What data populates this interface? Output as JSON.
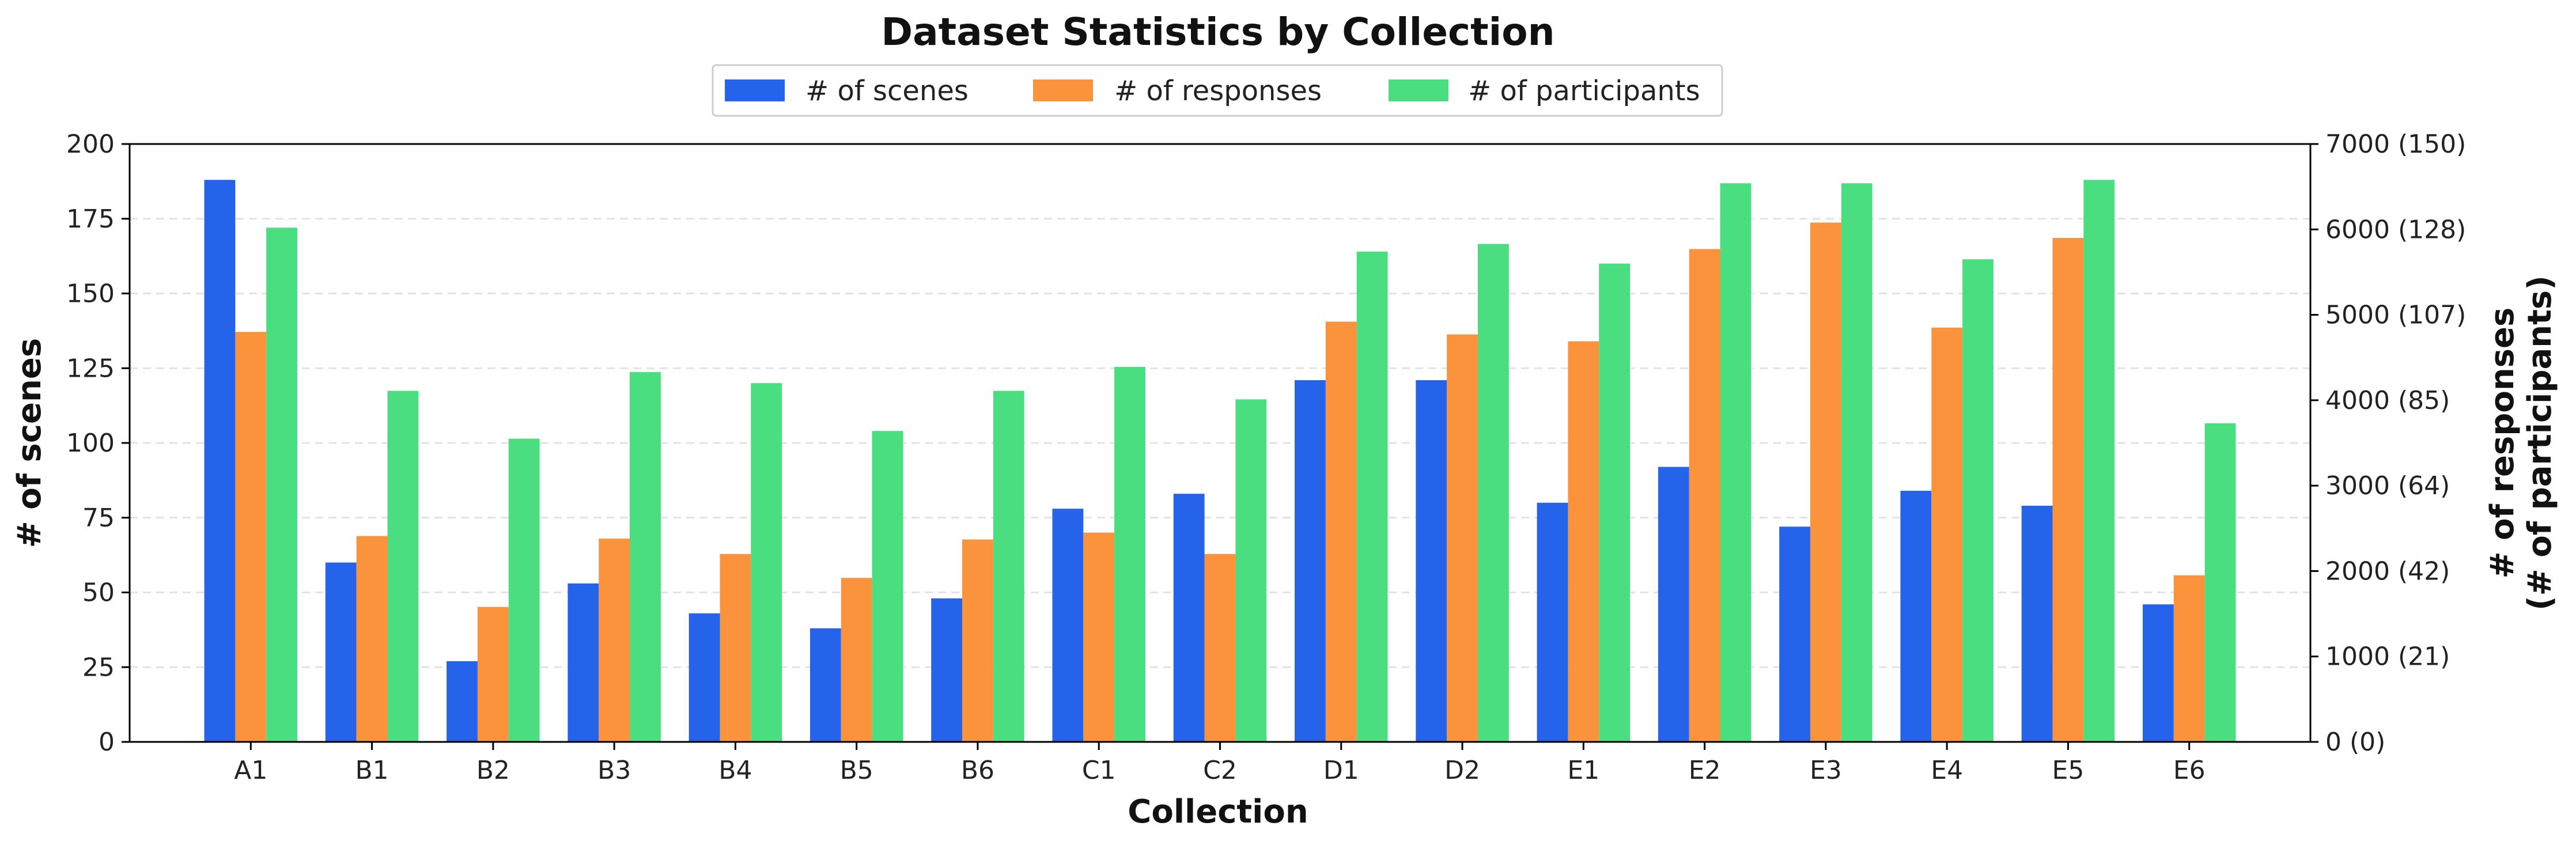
{
  "chart_data": {
    "type": "bar",
    "title": "Dataset Statistics by Collection",
    "xlabel": "Collection",
    "ylabel": "# of scenes",
    "y2label_line1": "# of responses",
    "y2label_line2": "(# of participants)",
    "categories": [
      "A1",
      "B1",
      "B2",
      "B3",
      "B4",
      "B5",
      "B6",
      "C1",
      "C2",
      "D1",
      "D2",
      "E1",
      "E2",
      "E3",
      "E4",
      "E5",
      "E6"
    ],
    "ylim": [
      0,
      200
    ],
    "yticks": [
      0,
      25,
      50,
      75,
      100,
      125,
      150,
      175,
      200
    ],
    "y2lim": [
      0,
      7000
    ],
    "y2ticks": [
      0,
      1000,
      2000,
      3000,
      4000,
      5000,
      6000,
      7000
    ],
    "y2tick_labels": [
      "0 (0)",
      "1000 (21)",
      "2000 (42)",
      "3000 (64)",
      "4000 (85)",
      "5000 (107)",
      "6000 (128)",
      "7000 (150)"
    ],
    "grid": true,
    "legend_position": "top-center",
    "series": [
      {
        "name": "# of scenes",
        "axis": "left",
        "color": "#2563eb",
        "values": [
          188,
          60,
          27,
          53,
          43,
          38,
          48,
          78,
          83,
          121,
          121,
          80,
          92,
          72,
          84,
          79,
          46
        ]
      },
      {
        "name": "# of responses",
        "axis": "right",
        "color": "#fb923c",
        "values": [
          4800,
          2410,
          1580,
          2380,
          2200,
          1920,
          2370,
          2450,
          2200,
          4920,
          4770,
          4690,
          5770,
          6080,
          4850,
          5900,
          1950
        ]
      },
      {
        "name": "# of participants",
        "axis": "right",
        "color": "#4ade80",
        "values": [
          6020,
          4110,
          3550,
          4330,
          4200,
          3640,
          4110,
          4390,
          4010,
          5740,
          5830,
          5600,
          6540,
          6540,
          5650,
          6580,
          3730
        ]
      }
    ]
  }
}
